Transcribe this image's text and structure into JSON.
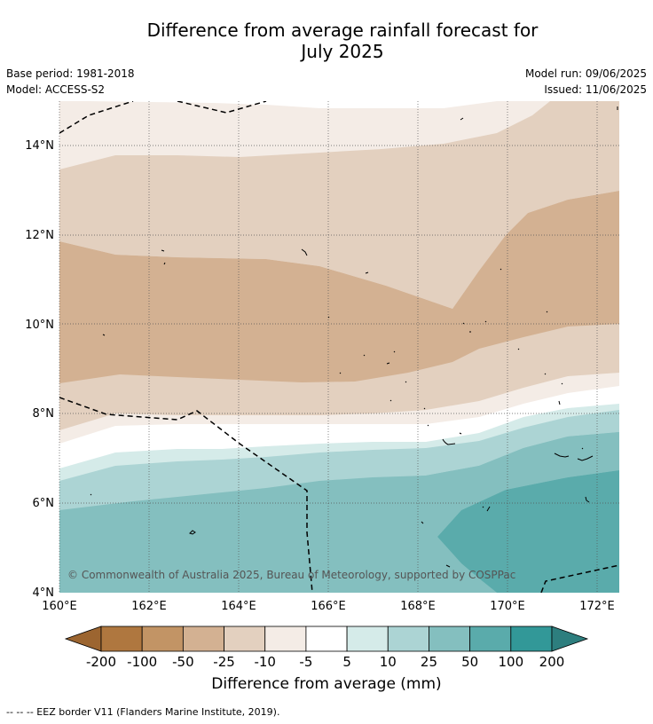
{
  "title_line1": "Difference from average rainfall forecast for",
  "title_line2": "July 2025",
  "base_period": "Base period: 1981-2018",
  "model": "Model: ACCESS-S2",
  "model_run": "Model run: 09/06/2025",
  "issued": "Issued: 11/06/2025",
  "copyright": "© Commonwealth of Australia 2025, Bureau of Meteorology, supported by COSPPac",
  "lat_ticks": [
    "14°N",
    "12°N",
    "10°N",
    "8°N",
    "6°N",
    "4°N"
  ],
  "lon_ticks": [
    "160°E",
    "162°E",
    "164°E",
    "166°E",
    "168°E",
    "170°E",
    "172°E"
  ],
  "colorbar": {
    "title": "Difference from average (mm)",
    "labels": [
      "-200",
      "-100",
      "-50",
      "-25",
      "-10",
      "-5",
      "5",
      "10",
      "25",
      "50",
      "100",
      "200"
    ],
    "colors": [
      "#9c6530",
      "#af773f",
      "#c29465",
      "#d3b192",
      "#e3d0bf",
      "#f4ece6",
      "#ffffff",
      "#d5ebe9",
      "#acd4d4",
      "#84bfbf",
      "#5aabab",
      "#329898",
      "#2d7e7e"
    ]
  },
  "footer": "--  --  -- EEZ border V11 (Flanders Marine Institute, 2019)."
}
